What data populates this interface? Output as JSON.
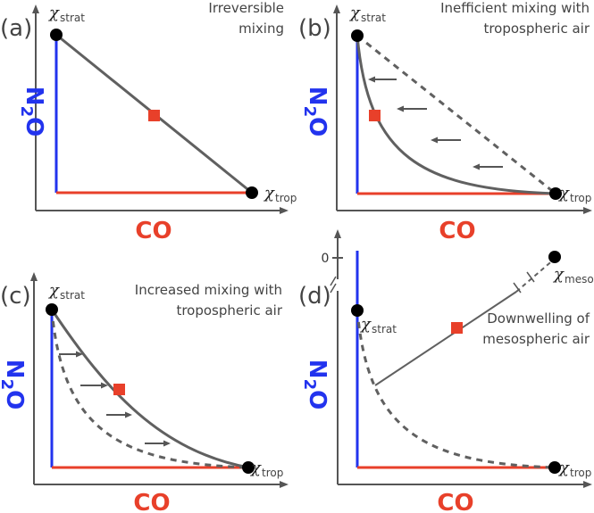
{
  "colors": {
    "n2o": "#2233ee",
    "co": "#e8402a",
    "line": "#606060",
    "axis": "#555555",
    "point": "#000000",
    "marker": "#e8402a"
  },
  "labels": {
    "n2o": "N",
    "n2o_sub": "2",
    "n2o_o": "O",
    "co": "CO",
    "chi": "χ",
    "strat": "strat",
    "trop": "trop",
    "meso": "meso",
    "zero": "0"
  },
  "panels": {
    "a": {
      "letter": "(a)",
      "title": [
        "Irreversible",
        "mixing"
      ]
    },
    "b": {
      "letter": "(b)",
      "title": [
        "Inefficient mixing with",
        "tropospheric air"
      ]
    },
    "c": {
      "letter": "(c)",
      "title": [
        "Increased mixing with",
        "tropospheric air"
      ]
    },
    "d": {
      "letter": "(d)",
      "title": [
        "Downwelling of",
        "mesospheric air"
      ]
    }
  }
}
